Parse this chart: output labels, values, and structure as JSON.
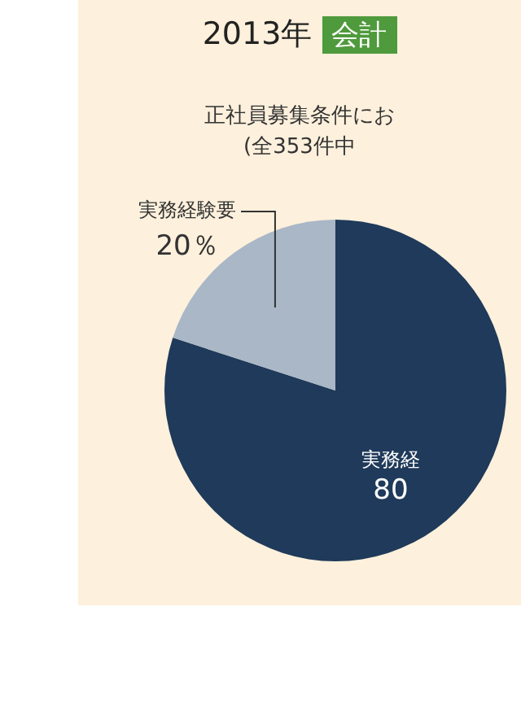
{
  "chart_data": {
    "type": "pie",
    "title": "2013年",
    "subtitle": "会計",
    "annotations": [
      "正社員募集条件にお",
      "(全353件中"
    ],
    "categories": [
      "実務経",
      "実務経験要"
    ],
    "values": [
      80,
      20
    ],
    "colors": [
      "#1f3a5a",
      "#a9b7c7"
    ],
    "value_labels": [
      "80",
      "20％"
    ],
    "legend": false
  }
}
